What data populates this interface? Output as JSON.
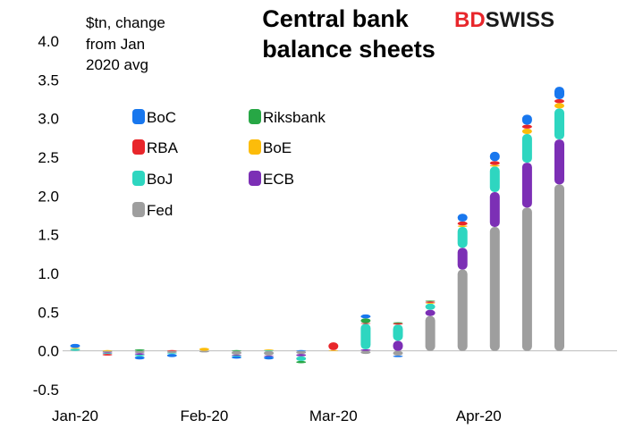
{
  "brand": {
    "part1": "BD",
    "part2": "SWISS"
  },
  "colors": {
    "BoC": "#1877ee",
    "Riksbank": "#27a745",
    "RBA": "#e8262b",
    "BoE": "#fcbc0a",
    "BoJ": "#2ed6c0",
    "ECB": "#7c2fb5",
    "Fed": "#9e9e9e"
  },
  "chart_data": {
    "type": "bar",
    "stacked": true,
    "title": "Central bank balance sheets",
    "title_lines": [
      "Central bank",
      "balance sheets"
    ],
    "ylabel": "$tn, change from Jan 2020 avg",
    "ylabel_lines": [
      "$tn, change",
      "from Jan",
      "2020 avg"
    ],
    "ylim": [
      -0.5,
      4.0
    ],
    "yticks": [
      "4.0",
      "3.5",
      "3.0",
      "2.5",
      "2.0",
      "1.5",
      "1.0",
      "0.5",
      "0.0",
      "-0.5"
    ],
    "ytick_values": [
      4.0,
      3.5,
      3.0,
      2.5,
      2.0,
      1.5,
      1.0,
      0.5,
      0.0,
      -0.5
    ],
    "xtick_labels": [
      "Jan-20",
      "Feb-20",
      "Mar-20",
      "Apr-20"
    ],
    "xtick_positions": [
      0,
      4,
      8,
      12.5
    ],
    "legend_position": "upper-left",
    "legend": [
      "BoC",
      "Riksbank",
      "RBA",
      "BoE",
      "BoJ",
      "ECB",
      "Fed"
    ],
    "series": [
      {
        "name": "Fed",
        "values": [
          0.0,
          -0.02,
          -0.03,
          -0.03,
          -0.02,
          -0.05,
          -0.06,
          -0.04,
          0.0,
          -0.04,
          -0.06,
          0.45,
          1.05,
          1.6,
          1.85,
          2.15
        ]
      },
      {
        "name": "ECB",
        "values": [
          0.0,
          -0.01,
          -0.02,
          0.0,
          0.0,
          -0.01,
          -0.01,
          -0.03,
          0.0,
          0.02,
          0.13,
          0.08,
          0.28,
          0.45,
          0.58,
          0.58
        ]
      },
      {
        "name": "BoJ",
        "values": [
          0.03,
          -0.01,
          -0.02,
          -0.01,
          0.0,
          -0.01,
          0.01,
          -0.06,
          0.0,
          0.33,
          0.21,
          0.08,
          0.27,
          0.33,
          0.37,
          0.4
        ]
      },
      {
        "name": "BoE",
        "values": [
          0.01,
          0.01,
          0.0,
          0.0,
          0.04,
          0.0,
          0.01,
          0.0,
          0.01,
          0.0,
          0.0,
          0.01,
          0.02,
          0.02,
          0.07,
          0.07
        ]
      },
      {
        "name": "RBA",
        "values": [
          0.0,
          -0.02,
          0.0,
          0.01,
          0.0,
          0.0,
          0.0,
          0.0,
          0.1,
          0.01,
          0.02,
          0.02,
          0.05,
          0.05,
          0.05,
          0.05
        ]
      },
      {
        "name": "Riksbank",
        "values": [
          0.0,
          0.0,
          0.02,
          0.0,
          0.0,
          0.01,
          0.0,
          -0.03,
          0.0,
          0.06,
          0.01,
          0.01,
          0.0,
          0.0,
          0.0,
          0.0
        ]
      },
      {
        "name": "BoC",
        "values": [
          0.05,
          0.0,
          -0.04,
          -0.04,
          0.0,
          -0.03,
          -0.04,
          0.01,
          0.0,
          0.05,
          -0.02,
          0.0,
          0.1,
          0.12,
          0.13,
          0.16
        ]
      }
    ]
  }
}
